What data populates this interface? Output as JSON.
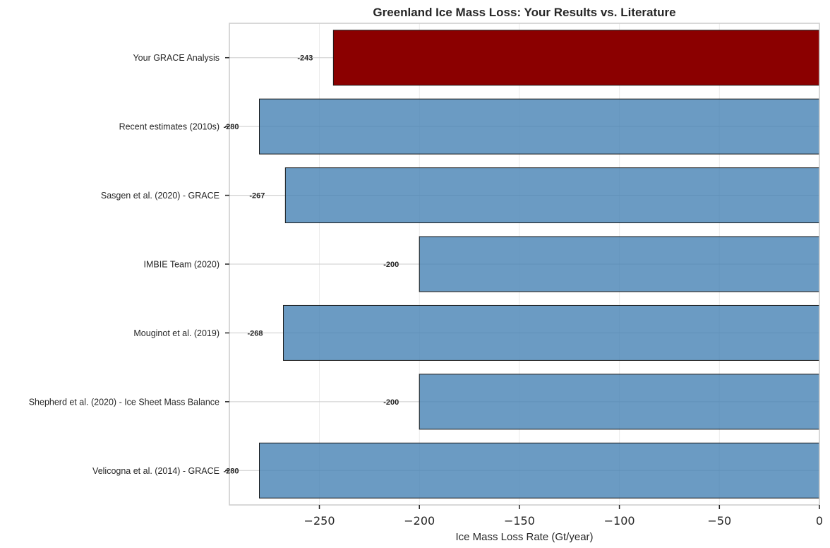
{
  "chart_data": {
    "type": "bar",
    "orientation": "horizontal",
    "title": "Greenland Ice Mass Loss: Your Results vs. Literature",
    "xlabel": "Ice Mass Loss Rate (Gt/year)",
    "ylabel": "",
    "xlim": [
      -295,
      0
    ],
    "xticks": [
      -250,
      -200,
      -150,
      -100,
      -50,
      0
    ],
    "xtick_labels": [
      "−250",
      "−200",
      "−150",
      "−100",
      "−50",
      "0"
    ],
    "grid": true,
    "categories": [
      "Your GRACE Analysis",
      "Recent estimates (2010s)",
      "Sasgen et al. (2020) - GRACE",
      "IMBIE Team (2020)",
      "Mouginot et al. (2019)",
      "Shepherd et al. (2020) - Ice Sheet Mass Balance",
      "Velicogna et al. (2014) - GRACE"
    ],
    "values": [
      -243,
      -280,
      -267,
      -200,
      -268,
      -200,
      -280
    ],
    "value_labels": [
      "-243",
      "-280",
      "-267",
      "-200",
      "-268",
      "-200",
      "-280"
    ],
    "colors": [
      "#8b0000",
      "#4682b4",
      "#4682b4",
      "#4682b4",
      "#4682b4",
      "#4682b4",
      "#4682b4"
    ],
    "bar_opacity": [
      1,
      0.8,
      0.8,
      0.8,
      0.8,
      0.8,
      0.8
    ]
  }
}
